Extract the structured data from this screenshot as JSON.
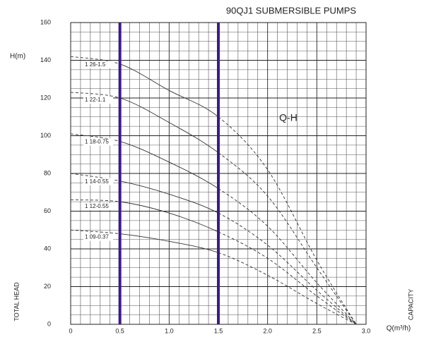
{
  "chart_data": {
    "type": "line",
    "title": "90QJ1 SUBMERSIBLE PUMPS",
    "y_unit_label": "H(m)",
    "y_axis_label": "TOTAL HEAD",
    "x_axis_label": "Q(m³/h)",
    "x_side_label": "CAPACITY",
    "annotation": "Q-H",
    "x": [
      0,
      0.5,
      1.0,
      1.5,
      2.0,
      2.5,
      2.9
    ],
    "series": [
      {
        "name": "1 26-1.5",
        "color": "#333333",
        "values": [
          142,
          138,
          124,
          110,
          82,
          34,
          0
        ]
      },
      {
        "name": "1 22-1.1",
        "color": "#333333",
        "values": [
          123,
          120,
          107,
          91,
          68,
          30,
          0
        ]
      },
      {
        "name": "1 18-0.75",
        "color": "#333333",
        "values": [
          101,
          97,
          86,
          72,
          52,
          22,
          0
        ]
      },
      {
        "name": "1 14-0.55",
        "color": "#333333",
        "values": [
          80,
          76,
          69,
          59,
          42,
          18,
          0
        ]
      },
      {
        "name": "1 12-0.55",
        "color": "#333333",
        "values": [
          66,
          65,
          59,
          49,
          35,
          15,
          0
        ]
      },
      {
        "name": "1 09-0.37",
        "color": "#333333",
        "values": [
          50,
          48,
          44,
          38,
          26,
          11,
          0
        ]
      }
    ],
    "solid_range": [
      0.5,
      1.5
    ],
    "highlight_x": [
      0.5,
      1.5
    ],
    "highlight_color": "#3b1a8f",
    "xlim": [
      0,
      3.0
    ],
    "ylim": [
      0,
      160
    ],
    "xticks": [
      0,
      0.5,
      {
        "value": 1.0,
        "label": "1.0"
      },
      1.5,
      {
        "value": 2.0,
        "label": "2.0"
      },
      2.5,
      {
        "value": 3.0,
        "label": "3.0"
      }
    ],
    "yticks": [
      0,
      20,
      40,
      60,
      80,
      100,
      120,
      140,
      160
    ],
    "x_minor_ticks": [
      0.1,
      0.2,
      0.3,
      0.4,
      0.6,
      0.7,
      0.8,
      0.9,
      1.1,
      1.2,
      1.3,
      1.4,
      1.6,
      1.7,
      1.8,
      1.9,
      2.1,
      2.2,
      2.3,
      2.4,
      2.6,
      2.7,
      2.8,
      2.9
    ],
    "y_minor_ticks": [
      5,
      10,
      15,
      25,
      30,
      35,
      45,
      50,
      55,
      65,
      70,
      75,
      85,
      90,
      95,
      105,
      110,
      115,
      125,
      130,
      135,
      145,
      150,
      155
    ],
    "grid": true
  }
}
